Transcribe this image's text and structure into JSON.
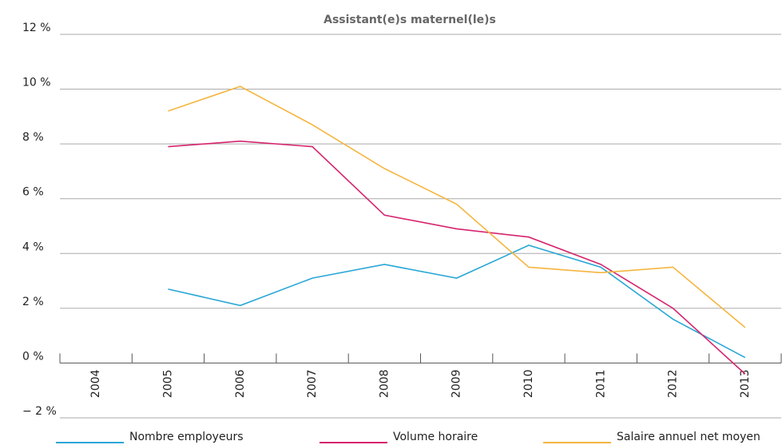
{
  "chart_data": {
    "type": "line",
    "title": "Assistant(e)s maternel(le)s",
    "categories": [
      "2004",
      "2005",
      "2006",
      "2007",
      "2008",
      "2009",
      "2010",
      "2011",
      "2012",
      "2013"
    ],
    "series": [
      {
        "name": "Nombre employeurs",
        "color": "#2aa7d6",
        "values": [
          null,
          2.7,
          2.1,
          3.1,
          3.6,
          3.1,
          4.3,
          3.5,
          1.6,
          0.2
        ]
      },
      {
        "name": "Volume horaire",
        "color": "#d6246e",
        "values": [
          null,
          7.9,
          8.1,
          7.9,
          5.4,
          4.9,
          4.6,
          3.6,
          2.0,
          -0.4
        ]
      },
      {
        "name": "Salaire annuel net moyen",
        "color": "#f5b53f",
        "values": [
          null,
          9.2,
          10.1,
          8.7,
          7.1,
          5.8,
          3.5,
          3.3,
          3.5,
          1.3
        ]
      }
    ],
    "ylim": [
      -2,
      12
    ],
    "yticks": [
      {
        "value": -2,
        "label": "− 2 %"
      },
      {
        "value": 0,
        "label": "0 %"
      },
      {
        "value": 2,
        "label": "2 %"
      },
      {
        "value": 4,
        "label": "4 %"
      },
      {
        "value": 6,
        "label": "6 %"
      },
      {
        "value": 8,
        "label": "8 %"
      },
      {
        "value": 10,
        "label": "10 %"
      },
      {
        "value": 12,
        "label": "12 %"
      }
    ],
    "grid": true,
    "legend": "bottom"
  }
}
